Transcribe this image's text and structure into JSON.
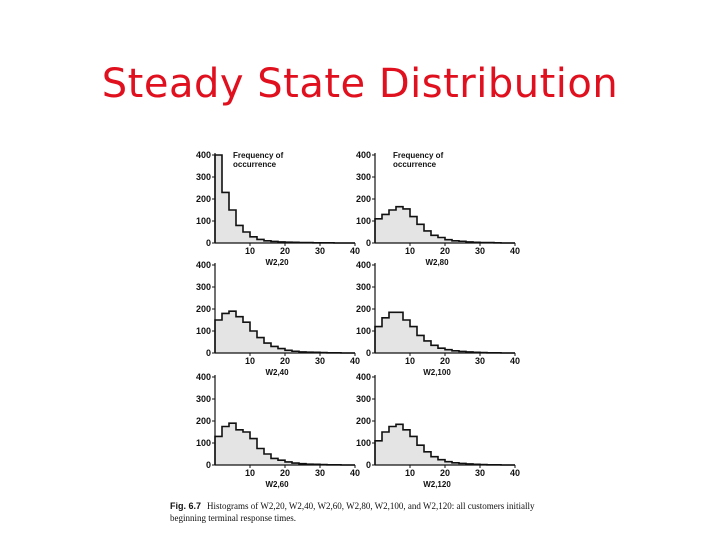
{
  "slide": {
    "title": "Steady State Distribution"
  },
  "figure": {
    "caption_label": "Fig. 6.7",
    "caption_text": "Histograms of W2,20, W2,40, W2,60, W2,80, W2,100, and W2,120: all customers initially beginning terminal response times."
  },
  "chart_data": [
    {
      "type": "bar",
      "subtype": "histogram",
      "annotation": "Frequency of occurrence",
      "xlabel": "W2,20",
      "xlim": [
        0,
        40
      ],
      "ylim": [
        0,
        400
      ],
      "xticks": [
        10,
        20,
        30,
        40
      ],
      "yticks": [
        0,
        100,
        200,
        300,
        400
      ],
      "bin_width": 2,
      "bins_start": [
        0,
        2,
        4,
        6,
        8,
        10,
        12,
        14,
        16,
        18,
        20,
        22,
        24,
        26,
        28,
        30,
        32,
        34,
        36,
        38
      ],
      "values": [
        400,
        230,
        150,
        80,
        50,
        28,
        16,
        10,
        7,
        5,
        4,
        3,
        2,
        2,
        1,
        1,
        1,
        0,
        0,
        0
      ]
    },
    {
      "type": "bar",
      "subtype": "histogram",
      "annotation": "Frequency of occurrence",
      "xlabel": "W2,80",
      "xlim": [
        0,
        40
      ],
      "ylim": [
        0,
        400
      ],
      "xticks": [
        10,
        20,
        30,
        40
      ],
      "yticks": [
        0,
        100,
        200,
        300,
        400
      ],
      "bin_width": 2,
      "bins_start": [
        0,
        2,
        4,
        6,
        8,
        10,
        12,
        14,
        16,
        18,
        20,
        22,
        24,
        26,
        28,
        30,
        32,
        34,
        36,
        38
      ],
      "values": [
        110,
        130,
        150,
        165,
        155,
        120,
        85,
        55,
        35,
        25,
        15,
        10,
        8,
        5,
        3,
        2,
        2,
        1,
        0,
        0
      ]
    },
    {
      "type": "bar",
      "subtype": "histogram",
      "xlabel": "W2,40",
      "xlim": [
        0,
        40
      ],
      "ylim": [
        0,
        400
      ],
      "xticks": [
        10,
        20,
        30,
        40
      ],
      "yticks": [
        0,
        100,
        200,
        300,
        400
      ],
      "bin_width": 2,
      "bins_start": [
        0,
        2,
        4,
        6,
        8,
        10,
        12,
        14,
        16,
        18,
        20,
        22,
        24,
        26,
        28,
        30,
        32,
        34,
        36,
        38
      ],
      "values": [
        150,
        180,
        190,
        165,
        140,
        100,
        70,
        45,
        30,
        20,
        12,
        8,
        5,
        4,
        3,
        2,
        1,
        1,
        0,
        0
      ]
    },
    {
      "type": "bar",
      "subtype": "histogram",
      "xlabel": "W2,100",
      "xlim": [
        0,
        40
      ],
      "ylim": [
        0,
        400
      ],
      "xticks": [
        10,
        20,
        30,
        40
      ],
      "yticks": [
        0,
        100,
        200,
        300,
        400
      ],
      "bin_width": 2,
      "bins_start": [
        0,
        2,
        4,
        6,
        8,
        10,
        12,
        14,
        16,
        18,
        20,
        22,
        24,
        26,
        28,
        30,
        32,
        34,
        36,
        38
      ],
      "values": [
        120,
        160,
        185,
        185,
        150,
        120,
        80,
        55,
        35,
        22,
        15,
        10,
        7,
        5,
        3,
        2,
        1,
        1,
        0,
        0
      ]
    },
    {
      "type": "bar",
      "subtype": "histogram",
      "xlabel": "W2,60",
      "xlim": [
        0,
        40
      ],
      "ylim": [
        0,
        400
      ],
      "xticks": [
        10,
        20,
        30,
        40
      ],
      "yticks": [
        0,
        100,
        200,
        300,
        400
      ],
      "bin_width": 2,
      "bins_start": [
        0,
        2,
        4,
        6,
        8,
        10,
        12,
        14,
        16,
        18,
        20,
        22,
        24,
        26,
        28,
        30,
        32,
        34,
        36,
        38
      ],
      "values": [
        130,
        175,
        190,
        160,
        150,
        120,
        75,
        50,
        30,
        22,
        14,
        9,
        6,
        4,
        3,
        2,
        1,
        1,
        0,
        0
      ]
    },
    {
      "type": "bar",
      "subtype": "histogram",
      "xlabel": "W2,120",
      "xlim": [
        0,
        40
      ],
      "ylim": [
        0,
        400
      ],
      "xticks": [
        10,
        20,
        30,
        40
      ],
      "yticks": [
        0,
        100,
        200,
        300,
        400
      ],
      "bin_width": 2,
      "bins_start": [
        0,
        2,
        4,
        6,
        8,
        10,
        12,
        14,
        16,
        18,
        20,
        22,
        24,
        26,
        28,
        30,
        32,
        34,
        36,
        38
      ],
      "values": [
        110,
        150,
        175,
        185,
        160,
        130,
        90,
        60,
        38,
        24,
        15,
        10,
        7,
        5,
        3,
        2,
        1,
        1,
        0,
        0
      ]
    }
  ]
}
